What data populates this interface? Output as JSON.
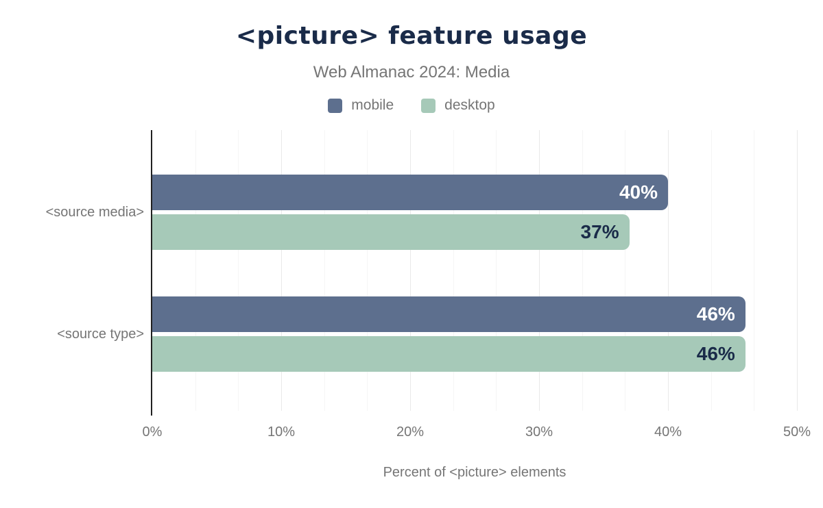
{
  "header": {
    "title": "<picture> feature usage",
    "subtitle": "Web Almanac 2024: Media"
  },
  "legend": {
    "items": [
      {
        "label": "mobile",
        "color": "#5d6f8e"
      },
      {
        "label": "desktop",
        "color": "#a6c9b8"
      }
    ]
  },
  "chart_data": {
    "type": "bar",
    "orientation": "horizontal",
    "title": "<picture> feature usage",
    "subtitle": "Web Almanac 2024: Media",
    "categories": [
      "<source media>",
      "<source type>"
    ],
    "series": [
      {
        "name": "mobile",
        "color": "#5d6f8e",
        "values": [
          40,
          46
        ],
        "value_labels": [
          "40%",
          "46%"
        ],
        "label_color": "#ffffff"
      },
      {
        "name": "desktop",
        "color": "#a6c9b8",
        "values": [
          37,
          46
        ],
        "value_labels": [
          "37%",
          "46%"
        ],
        "label_color": "#1a2b49"
      }
    ],
    "xlabel": "Percent of <picture> elements",
    "xlim": [
      0,
      50
    ],
    "xticks": [
      0,
      10,
      20,
      30,
      40,
      50
    ],
    "xtick_labels": [
      "0%",
      "10%",
      "20%",
      "30%",
      "40%",
      "50%"
    ],
    "grid": "vertical, minor gridlines every 10/3 percent, legend top center"
  },
  "colors": {
    "title": "#1a2b49",
    "muted_text": "#757575",
    "axis_line": "#212121",
    "gridline_major": "#e9e9e9",
    "gridline_minor": "#f5f5f5",
    "background": "#ffffff"
  }
}
